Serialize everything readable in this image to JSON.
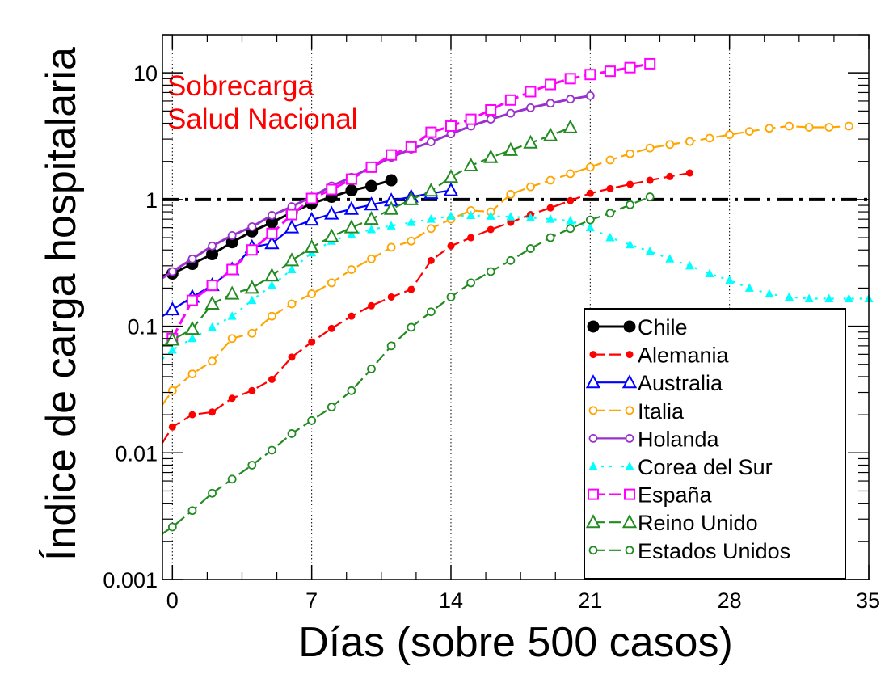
{
  "chart_data": {
    "type": "line",
    "title": "",
    "xlabel": "Días (sobre 500 casos)",
    "ylabel": "Índice de carga hospitalaria",
    "xlim": [
      -0.5,
      35
    ],
    "ylim": [
      0.001,
      20
    ],
    "yscale": "log",
    "x_ticks": [
      0,
      7,
      14,
      21,
      28,
      35
    ],
    "x_tick_labels": [
      "0",
      "7",
      "14",
      "21",
      "28",
      "35"
    ],
    "y_ticks": [
      0.001,
      0.01,
      0.1,
      1,
      10
    ],
    "y_tick_labels": [
      "0.001",
      "0.01",
      "0.1",
      "1",
      "10"
    ],
    "grid": "vertical dotted lines at 0, 7, 14, 21, 28",
    "reference_line": {
      "y": 1,
      "style": "dash-dot",
      "color": "#000000"
    },
    "annotation": {
      "text_lines": [
        "Sobrecarga",
        "Salud Nacional"
      ],
      "color": "#ff0000"
    },
    "legend_position": "bottom-right",
    "series": [
      {
        "name": "Chile",
        "color": "#000000",
        "marker": "filled-circle",
        "dash": "solid",
        "x": [
          -0.5,
          0,
          1,
          2,
          3,
          4,
          5,
          6,
          7,
          8,
          9,
          10,
          11
        ],
        "y": [
          0.25,
          0.26,
          0.31,
          0.37,
          0.46,
          0.56,
          0.66,
          0.79,
          0.93,
          1.05,
          1.18,
          1.28,
          1.42
        ]
      },
      {
        "name": "Alemania",
        "color": "#ff0000",
        "marker": "filled-circle-small",
        "dash": "dashed",
        "x": [
          -0.5,
          0,
          1,
          2,
          3,
          4,
          5,
          6,
          7,
          8,
          9,
          10,
          11,
          12,
          13,
          14,
          15,
          16,
          17,
          18,
          19,
          20,
          21,
          22,
          23,
          24,
          25,
          26
        ],
        "y": [
          0.012,
          0.016,
          0.02,
          0.021,
          0.027,
          0.031,
          0.038,
          0.057,
          0.075,
          0.096,
          0.12,
          0.145,
          0.17,
          0.195,
          0.33,
          0.43,
          0.5,
          0.58,
          0.66,
          0.76,
          0.86,
          0.98,
          1.12,
          1.22,
          1.32,
          1.42,
          1.52,
          1.62
        ]
      },
      {
        "name": "Australia",
        "color": "#0000ff",
        "marker": "open-triangle",
        "dash": "solid",
        "x": [
          -0.5,
          0,
          1,
          2,
          3,
          4,
          5,
          6,
          7,
          8,
          9,
          10,
          11,
          12,
          13,
          14
        ],
        "y": [
          0.12,
          0.135,
          0.17,
          0.21,
          0.28,
          0.42,
          0.45,
          0.6,
          0.69,
          0.77,
          0.84,
          0.91,
          0.98,
          1.05,
          1.12,
          1.18
        ]
      },
      {
        "name": "Italia",
        "color": "#ffa500",
        "marker": "open-circle-small",
        "dash": "dashed",
        "x": [
          -0.5,
          0,
          1,
          2,
          3,
          4,
          5,
          6,
          7,
          8,
          9,
          10,
          11,
          12,
          13,
          14,
          15,
          16,
          17,
          18,
          19,
          20,
          21,
          22,
          23,
          24,
          25,
          26,
          27,
          28,
          29,
          30,
          31,
          32,
          33,
          34
        ],
        "y": [
          0.024,
          0.031,
          0.042,
          0.053,
          0.08,
          0.088,
          0.12,
          0.15,
          0.18,
          0.22,
          0.28,
          0.34,
          0.42,
          0.47,
          0.59,
          0.7,
          0.82,
          0.8,
          1.1,
          1.26,
          1.42,
          1.6,
          1.8,
          2.05,
          2.3,
          2.55,
          2.72,
          2.87,
          3.05,
          3.25,
          3.45,
          3.65,
          3.8,
          3.72,
          3.72,
          3.8
        ]
      },
      {
        "name": "Holanda",
        "color": "#9932cc",
        "marker": "open-circle-small",
        "dash": "solid",
        "x": [
          -0.5,
          0,
          1,
          2,
          3,
          4,
          5,
          6,
          7,
          8,
          9,
          10,
          11,
          12,
          13,
          14,
          15,
          16,
          17,
          18,
          19,
          20,
          21
        ],
        "y": [
          0.24,
          0.27,
          0.34,
          0.43,
          0.52,
          0.61,
          0.75,
          0.88,
          1.05,
          1.28,
          1.5,
          1.8,
          2.15,
          2.5,
          2.85,
          3.3,
          3.8,
          4.3,
          4.8,
          5.3,
          5.75,
          6.2,
          6.6
        ]
      },
      {
        "name": "Corea del Sur",
        "color": "#00ffff",
        "marker": "filled-triangle",
        "dash": "dotted",
        "x": [
          -0.5,
          0,
          1,
          2,
          3,
          4,
          5,
          6,
          7,
          8,
          9,
          10,
          11,
          12,
          13,
          14,
          15,
          16,
          17,
          18,
          19,
          20,
          21,
          22,
          23,
          24,
          25,
          26,
          27,
          28,
          29,
          30,
          31,
          32,
          33,
          34,
          35
        ],
        "y": [
          0.055,
          0.065,
          0.08,
          0.098,
          0.12,
          0.16,
          0.21,
          0.28,
          0.38,
          0.47,
          0.53,
          0.58,
          0.62,
          0.66,
          0.7,
          0.74,
          0.75,
          0.74,
          0.73,
          0.72,
          0.7,
          0.68,
          0.6,
          0.5,
          0.44,
          0.39,
          0.34,
          0.3,
          0.26,
          0.23,
          0.2,
          0.18,
          0.17,
          0.165,
          0.165,
          0.165,
          0.165
        ]
      },
      {
        "name": "España",
        "color": "#ff00ff",
        "marker": "open-square",
        "dash": "dashed",
        "x": [
          0,
          1,
          2,
          3,
          4,
          5,
          6,
          7,
          8,
          9,
          10,
          11,
          12,
          13,
          14,
          15,
          16,
          17,
          18,
          19,
          20,
          21,
          22,
          23,
          24
        ],
        "y": [
          0.08,
          0.16,
          0.21,
          0.28,
          0.4,
          0.54,
          0.76,
          1.02,
          1.2,
          1.45,
          1.8,
          2.25,
          2.6,
          3.4,
          3.8,
          4.3,
          5.1,
          6.1,
          7.1,
          8.1,
          9.0,
          9.7,
          10.3,
          11.0,
          11.8
        ]
      },
      {
        "name": "Reino Unido",
        "color": "#228b22",
        "marker": "open-triangle",
        "dash": "dashed",
        "x": [
          -0.5,
          0,
          1,
          2,
          3,
          4,
          5,
          6,
          7,
          8,
          9,
          10,
          11,
          12,
          13,
          14,
          15,
          16,
          17,
          18,
          19,
          20
        ],
        "y": [
          0.07,
          0.078,
          0.095,
          0.15,
          0.18,
          0.2,
          0.25,
          0.33,
          0.42,
          0.51,
          0.6,
          0.7,
          0.84,
          1.0,
          1.17,
          1.5,
          1.85,
          2.15,
          2.45,
          2.8,
          3.2,
          3.7
        ]
      },
      {
        "name": "Estados Unidos",
        "color": "#228b22",
        "marker": "open-circle-small",
        "dash": "dashed",
        "x": [
          -0.5,
          0,
          1,
          2,
          3,
          4,
          5,
          6,
          7,
          8,
          9,
          10,
          11,
          12,
          13,
          14,
          15,
          16,
          17,
          18,
          19,
          20,
          21,
          22,
          23,
          24
        ],
        "y": [
          0.0023,
          0.0026,
          0.0035,
          0.0048,
          0.0062,
          0.008,
          0.0105,
          0.0142,
          0.018,
          0.023,
          0.031,
          0.046,
          0.07,
          0.098,
          0.13,
          0.17,
          0.22,
          0.27,
          0.33,
          0.41,
          0.5,
          0.59,
          0.69,
          0.78,
          0.91,
          1.05
        ]
      }
    ]
  }
}
